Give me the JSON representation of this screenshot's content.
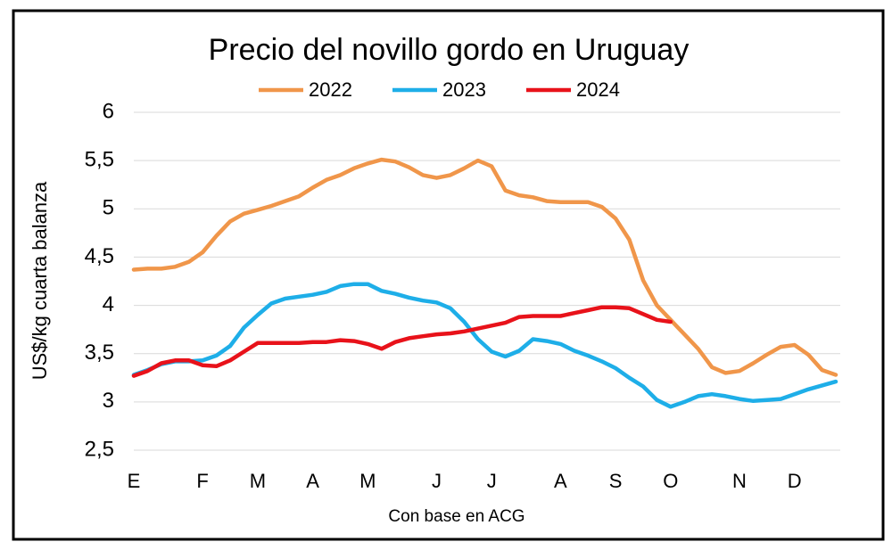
{
  "chart_data": {
    "type": "line",
    "title": "Precio del novillo gordo en Uruguay",
    "y_label": "US$/kg cuarta balanza",
    "x_label": "Con base en ACG",
    "x": [
      1,
      2,
      3,
      4,
      5,
      6,
      7,
      8,
      9,
      10,
      11,
      12,
      13,
      14,
      15,
      16,
      17,
      18,
      19,
      20,
      21,
      22,
      23,
      24,
      25,
      26,
      27,
      28,
      29,
      30,
      31,
      32,
      33,
      34,
      35,
      36,
      37,
      38,
      39,
      40,
      41,
      42,
      43,
      44,
      45,
      46,
      47,
      48,
      49,
      50,
      51,
      52
    ],
    "xlim": [
      1,
      52
    ],
    "xticks": [
      {
        "value": 1,
        "label": "E"
      },
      {
        "value": 6,
        "label": "F"
      },
      {
        "value": 10,
        "label": "M"
      },
      {
        "value": 14,
        "label": "A"
      },
      {
        "value": 18,
        "label": "M"
      },
      {
        "value": 23,
        "label": "J"
      },
      {
        "value": 27,
        "label": "J"
      },
      {
        "value": 32,
        "label": "A"
      },
      {
        "value": 36,
        "label": "S"
      },
      {
        "value": 40,
        "label": "O"
      },
      {
        "value": 45,
        "label": "N"
      },
      {
        "value": 49,
        "label": "D"
      }
    ],
    "ylim": [
      2.5,
      6
    ],
    "yticks": [
      {
        "value": 2.5,
        "label": "2,5"
      },
      3,
      {
        "value": 3.5,
        "label": "3,5"
      },
      4,
      {
        "value": 4.5,
        "label": "4,5"
      },
      5,
      {
        "value": 5.5,
        "label": "5,5"
      },
      6
    ],
    "grid": true,
    "series": [
      {
        "name": "2022",
        "color": "#f0964a",
        "values": [
          4.37,
          4.38,
          4.38,
          4.4,
          4.45,
          4.55,
          4.72,
          4.87,
          4.95,
          4.99,
          5.03,
          5.08,
          5.13,
          5.22,
          5.3,
          5.35,
          5.42,
          5.47,
          5.51,
          5.49,
          5.43,
          5.35,
          5.32,
          5.35,
          5.42,
          5.5,
          5.44,
          5.19,
          5.14,
          5.12,
          5.08,
          5.07,
          5.07,
          5.07,
          5.02,
          4.9,
          4.68,
          4.26,
          4.0,
          3.85,
          3.7,
          3.55,
          3.36,
          3.3,
          3.32,
          3.4,
          3.49,
          3.57,
          3.59,
          3.49,
          3.33,
          3.28
        ]
      },
      {
        "name": "2023",
        "color": "#1eaee8",
        "values": [
          3.28,
          3.33,
          3.39,
          3.42,
          3.42,
          3.43,
          3.48,
          3.58,
          3.77,
          3.9,
          4.02,
          4.07,
          4.09,
          4.11,
          4.14,
          4.2,
          4.22,
          4.22,
          4.15,
          4.12,
          4.08,
          4.05,
          4.03,
          3.97,
          3.83,
          3.65,
          3.52,
          3.47,
          3.53,
          3.65,
          3.63,
          3.6,
          3.53,
          3.48,
          3.42,
          3.35,
          3.25,
          3.16,
          3.02,
          2.95,
          3.0,
          3.06,
          3.08,
          3.06,
          3.03,
          3.01,
          3.02,
          3.03,
          3.08,
          3.13,
          3.17,
          3.21
        ]
      },
      {
        "name": "2024",
        "color": "#e8121a",
        "values": [
          3.27,
          3.32,
          3.4,
          3.43,
          3.43,
          3.38,
          3.37,
          3.43,
          3.52,
          3.61,
          3.61,
          3.61,
          3.61,
          3.62,
          3.62,
          3.64,
          3.63,
          3.6,
          3.55,
          3.62,
          3.66,
          3.68,
          3.7,
          3.71,
          3.73,
          3.76,
          3.79,
          3.82,
          3.88,
          3.89,
          3.89,
          3.89,
          3.92,
          3.95,
          3.98,
          3.98,
          3.97,
          3.91,
          3.85,
          3.83,
          null,
          null,
          null,
          null,
          null,
          null,
          null,
          null,
          null,
          null,
          null,
          null
        ]
      }
    ]
  }
}
